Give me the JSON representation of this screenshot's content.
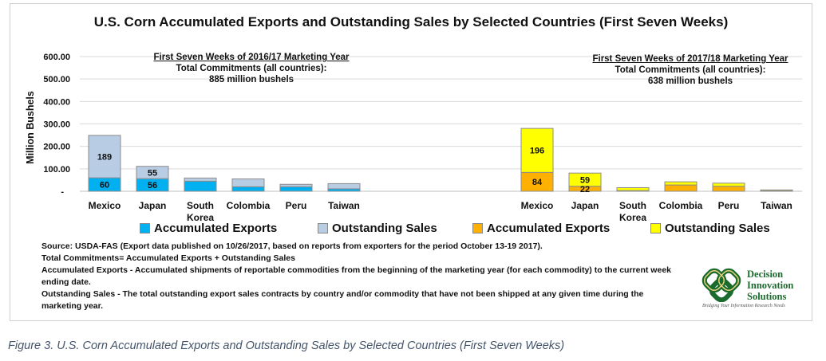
{
  "chart_data": [
    {
      "type": "bar",
      "stacked": true,
      "title": "U.S. Corn Accumulated Exports and Outstanding Sales by Selected Countries (First Seven Weeks)",
      "ylabel": "Million Bushels",
      "ylim": [
        0,
        600
      ],
      "yticks": [
        "-",
        "100.00",
        "200.00",
        "300.00",
        "400.00",
        "500.00",
        "600.00"
      ],
      "grid": true,
      "groups": [
        {
          "annotation": [
            "First Seven Weeks of 2016/17 Marketing Year",
            "Total Commitments (all countries):",
            "885 million bushels"
          ],
          "categories": [
            "Mexico",
            "Japan",
            "South Korea",
            "Colombia",
            "Peru",
            "Taiwan"
          ],
          "series": [
            {
              "name": "Accumulated Exports",
              "color": "#00b0f0",
              "values": [
                60,
                56,
                45,
                20,
                20,
                11
              ],
              "labels": [
                "60",
                "56",
                "",
                "",
                "",
                ""
              ]
            },
            {
              "name": "Outstanding Sales",
              "color": "#b8cce4",
              "values": [
                189,
                55,
                14,
                35,
                11,
                23
              ],
              "labels": [
                "189",
                "55",
                "",
                "",
                "",
                ""
              ]
            }
          ]
        },
        {
          "annotation": [
            "First Seven Weeks of 2017/18 Marketing Year",
            "Total Commitments (all countries):",
            "638 million bushels"
          ],
          "categories": [
            "Mexico",
            "Japan",
            "South Korea",
            "Colombia",
            "Peru",
            "Taiwan"
          ],
          "series": [
            {
              "name": "Accumulated Exports",
              "color": "#ffb000",
              "values": [
                84,
                22,
                3,
                28,
                22,
                2
              ],
              "labels": [
                "84",
                "22",
                "",
                "",
                "",
                ""
              ]
            },
            {
              "name": "Outstanding Sales",
              "color": "#ffff00",
              "values": [
                196,
                59,
                13,
                14,
                14,
                4
              ],
              "labels": [
                "196",
                "59",
                "",
                "",
                "",
                ""
              ]
            }
          ]
        }
      ],
      "legend_placement": "bottom"
    }
  ],
  "notes": [
    "Source: USDA-FAS (Export data published  on 10/26/2017, based on reports from exporters for the period October 13-19 2017).",
    "Total Commitments= Accumulated Exports + Outstanding Sales",
    "Accumulated Exports - Accumulated shipments of reportable commodities from the beginning of the marketing year (for each commodity) to the current week ending date.",
    "Outstanding Sales - The total outstanding export sales contracts by country and/or commodity that have not been shipped at any given time during the marketing year."
  ],
  "logo": {
    "name": "Decision Innovation Solutions",
    "lines": [
      "Decision",
      "Innovation",
      "Solutions"
    ],
    "tagline": "Bridging Your Information Research Needs"
  },
  "caption": "Figure 3. U.S. Corn Accumulated Exports and Outstanding Sales by Selected Countries (First Seven Weeks)"
}
